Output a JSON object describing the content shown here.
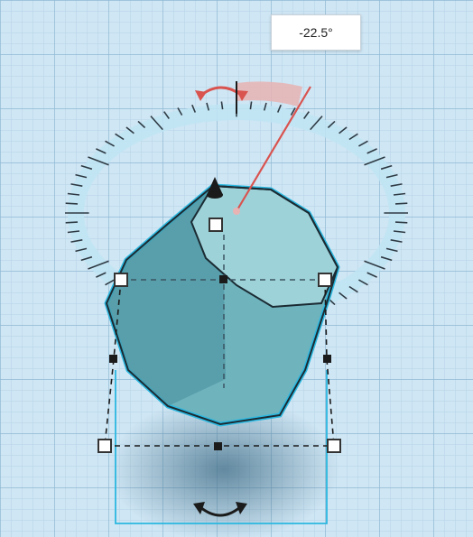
{
  "rotation_readout": {
    "value": "-22.5°"
  },
  "colors": {
    "workplane_bg": "#cfe6f4",
    "grid_minor": "#b6d3e6",
    "grid_major": "#8fb8d3",
    "selection_outline": "#2bb8e0",
    "shape_fill": "#6fb3bd",
    "shape_top": "#9ed2d9",
    "rotation_arc": "#e8b3b3",
    "rotation_pointer": "#d9534f",
    "tick": "#2f3b44"
  },
  "icons": {
    "top_rotate_handle": "double-arrow-rotate-icon",
    "bottom_rotate_handle": "double-arrow-rotate-icon",
    "lift_handle": "cone-lift-icon"
  }
}
